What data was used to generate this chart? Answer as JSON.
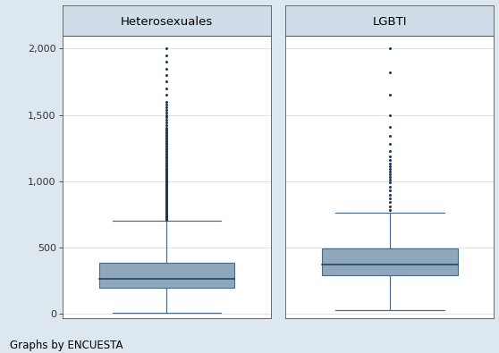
{
  "groups": [
    "Heterosexuales",
    "LGBTI"
  ],
  "heterosexuales": {
    "q1": 193,
    "median": 264,
    "q3": 385,
    "whisker_low": 10,
    "whisker_high": 700,
    "outliers": [
      710,
      715,
      720,
      725,
      730,
      735,
      740,
      745,
      750,
      755,
      760,
      765,
      770,
      775,
      780,
      785,
      790,
      795,
      800,
      805,
      810,
      815,
      820,
      825,
      830,
      835,
      840,
      845,
      850,
      855,
      860,
      865,
      870,
      875,
      880,
      885,
      890,
      895,
      900,
      905,
      910,
      915,
      920,
      925,
      930,
      935,
      940,
      945,
      950,
      955,
      960,
      965,
      970,
      975,
      980,
      985,
      990,
      995,
      1000,
      1005,
      1010,
      1015,
      1020,
      1025,
      1030,
      1035,
      1040,
      1045,
      1050,
      1055,
      1060,
      1065,
      1070,
      1075,
      1080,
      1085,
      1090,
      1095,
      1100,
      1110,
      1120,
      1130,
      1140,
      1150,
      1160,
      1170,
      1180,
      1190,
      1200,
      1210,
      1220,
      1230,
      1240,
      1250,
      1260,
      1270,
      1280,
      1290,
      1300,
      1310,
      1320,
      1330,
      1340,
      1350,
      1360,
      1370,
      1380,
      1390,
      1400,
      1420,
      1440,
      1460,
      1480,
      1500,
      1520,
      1540,
      1560,
      1580,
      1600,
      1650,
      1700,
      1750,
      1800,
      1850,
      1900,
      1950,
      2000
    ]
  },
  "lgbti": {
    "q1": 290,
    "median": 370,
    "q3": 490,
    "whisker_low": 30,
    "whisker_high": 760,
    "outliers": [
      780,
      810,
      840,
      870,
      900,
      930,
      960,
      990,
      1010,
      1030,
      1050,
      1070,
      1090,
      1110,
      1130,
      1160,
      1190,
      1230,
      1280,
      1340,
      1410,
      1500,
      1650,
      1820,
      2000
    ]
  },
  "ylim": [
    -30,
    2100
  ],
  "yticks": [
    0,
    500,
    1000,
    1500,
    2000
  ],
  "ytick_labels": [
    "0",
    "500",
    "1,000",
    "1,500",
    "2,000"
  ],
  "bg_outer": "#dce7f0",
  "bg_panel": "#ffffff",
  "bg_header": "#d0dce8",
  "box_fill": "#8fa8bc",
  "box_edge": "#4a6a85",
  "whisker_color": "#4a6a85",
  "outlier_color": "#1a3a5c",
  "median_color": "#1a3a5c",
  "spine_color": "#555555",
  "grid_color": "#d8e4ec",
  "title_fontsize": 9.5,
  "tick_fontsize": 8,
  "footer_text": "Graphs by ENCUESTA",
  "footer_fontsize": 8.5
}
